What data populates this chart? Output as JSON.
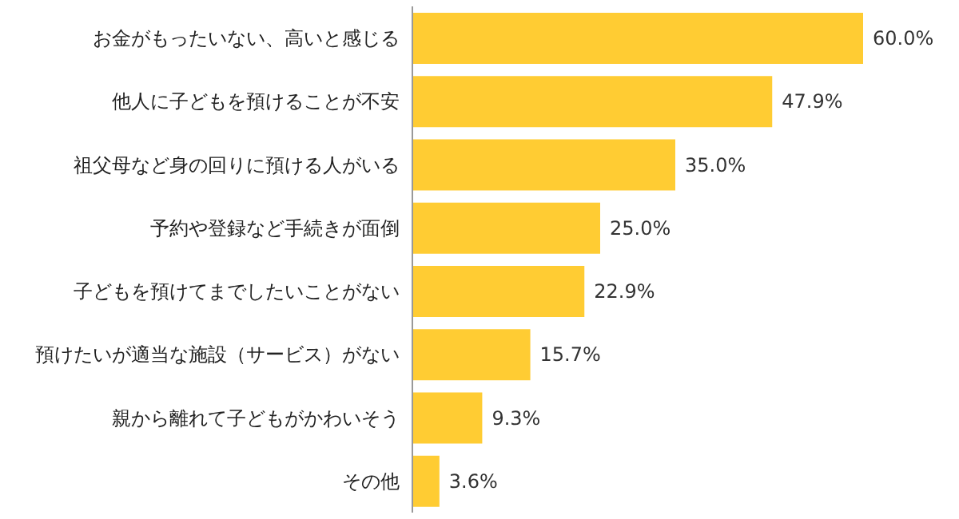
{
  "chart_data": {
    "type": "bar",
    "orientation": "horizontal",
    "categories": [
      "お金がもったいない、高いと感じる",
      "他人に子どもを預けることが不安",
      "祖父母など身の回りに預ける人がいる",
      "予約や登録など手続きが面倒",
      "子どもを預けてまでしたいことがない",
      "預けたいが適当な施設（サービス）がない",
      "親から離れて子どもがかわいそう",
      "その他"
    ],
    "values": [
      60.0,
      47.9,
      35.0,
      25.0,
      22.9,
      15.7,
      9.3,
      3.6
    ],
    "value_labels": [
      "60.0%",
      "47.9%",
      "35.0%",
      "25.0%",
      "22.9%",
      "15.7%",
      "9.3%",
      "3.6%"
    ],
    "color": "#ffcc33",
    "grid": false,
    "legend": false
  }
}
